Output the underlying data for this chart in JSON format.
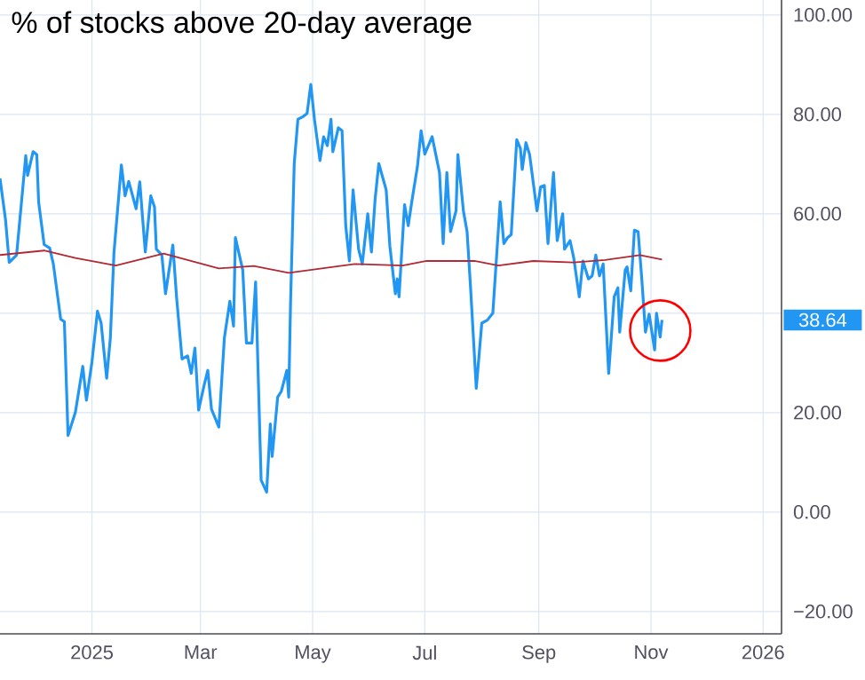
{
  "chart_data": {
    "type": "line",
    "title": "% of stocks above 20-day average",
    "x": [
      "2024-11-12",
      "2024-11-15",
      "2024-11-17",
      "2024-11-21",
      "2024-11-24",
      "2024-11-26",
      "2024-11-27",
      "2024-11-30",
      "2024-12-02",
      "2024-12-03",
      "2024-12-06",
      "2024-12-09",
      "2024-12-11",
      "2024-12-15",
      "2024-12-17",
      "2024-12-19",
      "2024-12-23",
      "2024-12-27",
      "2024-12-29",
      "2025-01-01",
      "2025-01-04",
      "2025-01-06",
      "2025-01-09",
      "2025-01-11",
      "2025-01-13",
      "2025-01-17",
      "2025-01-19",
      "2025-01-21",
      "2025-01-25",
      "2025-01-27",
      "2025-01-30",
      "2025-02-02",
      "2025-02-04",
      "2025-02-05",
      "2025-02-08",
      "2025-02-10",
      "2025-02-14",
      "2025-02-16",
      "2025-02-19",
      "2025-02-22",
      "2025-02-24",
      "2025-02-26",
      "2025-02-28",
      "2025-03-03",
      "2025-03-05",
      "2025-03-07",
      "2025-03-11",
      "2025-03-14",
      "2025-03-17",
      "2025-03-19",
      "2025-03-20",
      "2025-03-24",
      "2025-03-26",
      "2025-03-29",
      "2025-03-31",
      "2025-04-03",
      "2025-04-06",
      "2025-04-08",
      "2025-04-09",
      "2025-04-12",
      "2025-04-14",
      "2025-04-17",
      "2025-04-18",
      "2025-04-19",
      "2025-04-21",
      "2025-04-23",
      "2025-04-26",
      "2025-04-28",
      "2025-04-30",
      "2025-05-02",
      "2025-05-05",
      "2025-05-07",
      "2025-05-09",
      "2025-05-11",
      "2025-05-12",
      "2025-05-15",
      "2025-05-17",
      "2025-05-19",
      "2025-05-21",
      "2025-05-23",
      "2025-05-26",
      "2025-05-28",
      "2025-05-31",
      "2025-06-02",
      "2025-06-04",
      "2025-06-06",
      "2025-06-10",
      "2025-06-12",
      "2025-06-15",
      "2025-06-16",
      "2025-06-17",
      "2025-06-20",
      "2025-06-22",
      "2025-06-24",
      "2025-06-27",
      "2025-06-29",
      "2025-07-01",
      "2025-07-05",
      "2025-07-09",
      "2025-07-11",
      "2025-07-13",
      "2025-07-15",
      "2025-07-18",
      "2025-07-19",
      "2025-07-22",
      "2025-07-24",
      "2025-07-26",
      "2025-07-29",
      "2025-08-01",
      "2025-08-04",
      "2025-08-07",
      "2025-08-11",
      "2025-08-13",
      "2025-08-15",
      "2025-08-17",
      "2025-08-20",
      "2025-08-22",
      "2025-08-23",
      "2025-08-25",
      "2025-08-27",
      "2025-08-31",
      "2025-09-02",
      "2025-09-04",
      "2025-09-06",
      "2025-09-09",
      "2025-09-11",
      "2025-09-14",
      "2025-09-15",
      "2025-09-18",
      "2025-09-20",
      "2025-09-23",
      "2025-09-25",
      "2025-09-28",
      "2025-09-30",
      "2025-10-02",
      "2025-10-04",
      "2025-10-06",
      "2025-10-09",
      "2025-10-12",
      "2025-10-14",
      "2025-10-15",
      "2025-10-18",
      "2025-10-19",
      "2025-10-21",
      "2025-10-23",
      "2025-10-25",
      "2025-10-27",
      "2025-10-29",
      "2025-10-31",
      "2025-11-03",
      "2025-11-04",
      "2025-11-06",
      "2025-11-07"
    ],
    "series": [
      {
        "color": "#2196f3",
        "values": [
          67.1,
          58.8,
          50.2,
          51.7,
          63.6,
          71.7,
          67.7,
          72.5,
          71.9,
          62.4,
          53.8,
          53.1,
          49.9,
          38.8,
          38.3,
          15.4,
          20.1,
          29.3,
          22.5,
          30.2,
          40.4,
          38.0,
          26.9,
          35.0,
          52.3,
          69.8,
          63.6,
          66.5,
          61.0,
          66.4,
          52.3,
          63.6,
          61.4,
          52.9,
          51.7,
          43.9,
          53.7,
          43.3,
          30.8,
          31.4,
          27.9,
          33.0,
          20.5,
          25.5,
          28.5,
          20.7,
          17.1,
          35.0,
          42.4,
          37.4,
          55.2,
          48.7,
          34.0,
          34.0,
          46.3,
          6.4,
          4.0,
          17.7,
          11.2,
          23.1,
          24.3,
          28.5,
          23.1,
          42.1,
          70.1,
          79.0,
          79.6,
          80.2,
          86.0,
          79.0,
          70.7,
          75.5,
          73.7,
          79.0,
          72.5,
          77.3,
          76.7,
          57.6,
          50.5,
          64.8,
          52.9,
          49.9,
          60.0,
          52.3,
          63.0,
          70.1,
          64.8,
          53.5,
          43.9,
          46.9,
          43.3,
          61.8,
          57.6,
          62.6,
          69.5,
          76.7,
          72.0,
          75.5,
          68.3,
          54.0,
          68.3,
          56.4,
          60.6,
          71.9,
          60.6,
          56.4,
          44.5,
          24.9,
          38.0,
          38.6,
          40.0,
          62.4,
          54.0,
          55.2,
          55.8,
          74.9,
          73.1,
          68.9,
          74.3,
          71.9,
          60.6,
          65.4,
          65.7,
          54.0,
          68.3,
          54.6,
          60.0,
          52.9,
          54.6,
          51.1,
          43.3,
          50.5,
          46.9,
          47.5,
          51.7,
          47.5,
          49.9,
          27.9,
          43.3,
          45.1,
          36.2,
          48.7,
          49.3,
          44.5,
          56.7,
          56.4,
          46.9,
          36.2,
          39.8,
          32.6,
          40.0,
          35.2,
          38.64
        ]
      },
      {
        "color": "#b22833",
        "x": [
          "2024-11-12",
          "2024-12-06",
          "2024-12-23",
          "2025-01-14",
          "2025-02-09",
          "2025-03-11",
          "2025-03-30",
          "2025-04-18",
          "2025-05-24",
          "2025-06-19",
          "2025-07-02",
          "2025-07-28",
          "2025-08-10",
          "2025-08-29",
          "2025-09-20",
          "2025-10-07",
          "2025-10-26",
          "2025-11-07"
        ],
        "values": [
          51.7,
          52.6,
          51.1,
          49.6,
          52.0,
          49.0,
          49.5,
          48.1,
          49.9,
          49.6,
          50.5,
          50.5,
          49.6,
          50.5,
          50.2,
          50.7,
          51.7,
          50.8
        ]
      }
    ],
    "annotations": [
      "38.64"
    ],
    "xlim": [
      "2024-11-12",
      "2026-01-11"
    ],
    "xticks": [
      {
        "value": "2025-01-01",
        "label": "2025"
      },
      {
        "value": "2025-03-01",
        "label": "Mar"
      },
      {
        "value": "2025-05-01",
        "label": "May"
      },
      {
        "value": "2025-07-01",
        "label": "Jul"
      },
      {
        "value": "2025-09-01",
        "label": "Sep"
      },
      {
        "value": "2025-11-01",
        "label": "Nov"
      },
      {
        "value": "2026-01-01",
        "label": "2026"
      }
    ],
    "ylim": [
      -24.5,
      103
    ],
    "yticks": [
      {
        "value": -20,
        "label": "−20.00"
      },
      {
        "value": 0,
        "label": "0.00"
      },
      {
        "value": 20,
        "label": "20.00"
      },
      {
        "value": 40,
        "label": null
      },
      {
        "value": 60,
        "label": "60.00"
      },
      {
        "value": 80,
        "label": "80.00"
      },
      {
        "value": 100,
        "label": "100.00"
      }
    ],
    "grid": true,
    "marker": "none",
    "line_style": "solid"
  }
}
